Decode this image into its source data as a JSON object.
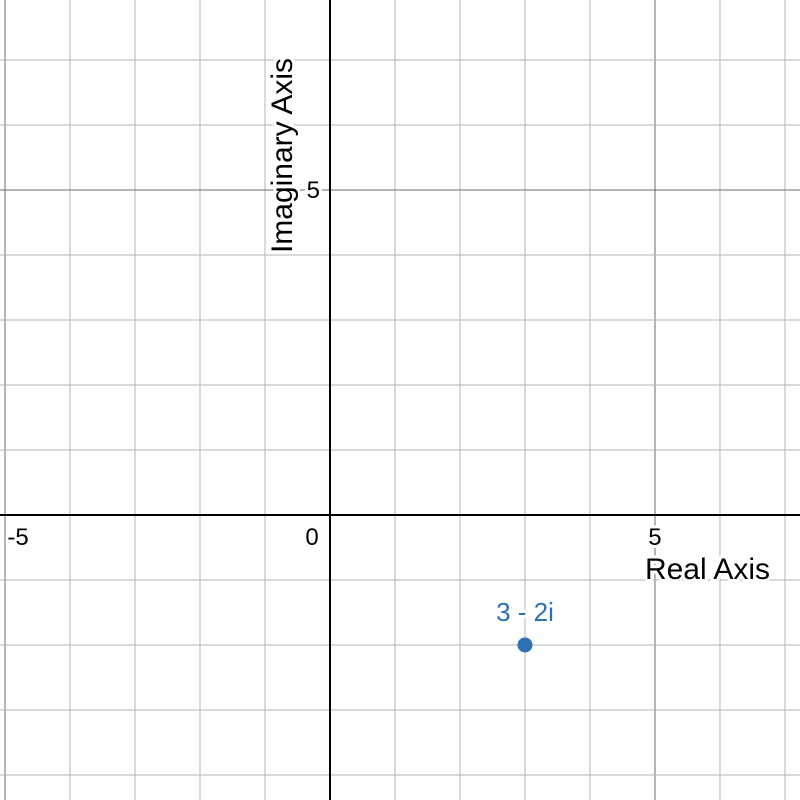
{
  "chart_data": {
    "type": "scatter",
    "xlabel": "Real Axis",
    "ylabel": "Imaginary Axis",
    "xlim": [
      -5.077,
      7.231
    ],
    "ylim": [
      -4.385,
      7.923
    ],
    "minor_step": 1,
    "major_step": 5,
    "grid": true,
    "x_tick_labels": [
      {
        "value": -5,
        "label": "-5"
      },
      {
        "value": 0,
        "label": "0"
      },
      {
        "value": 5,
        "label": "5"
      }
    ],
    "y_tick_labels": [
      {
        "value": 5,
        "label": "5"
      }
    ],
    "points": [
      {
        "x": 3,
        "y": -2,
        "label": "3 - 2i",
        "color": "#2d70b3"
      }
    ]
  }
}
